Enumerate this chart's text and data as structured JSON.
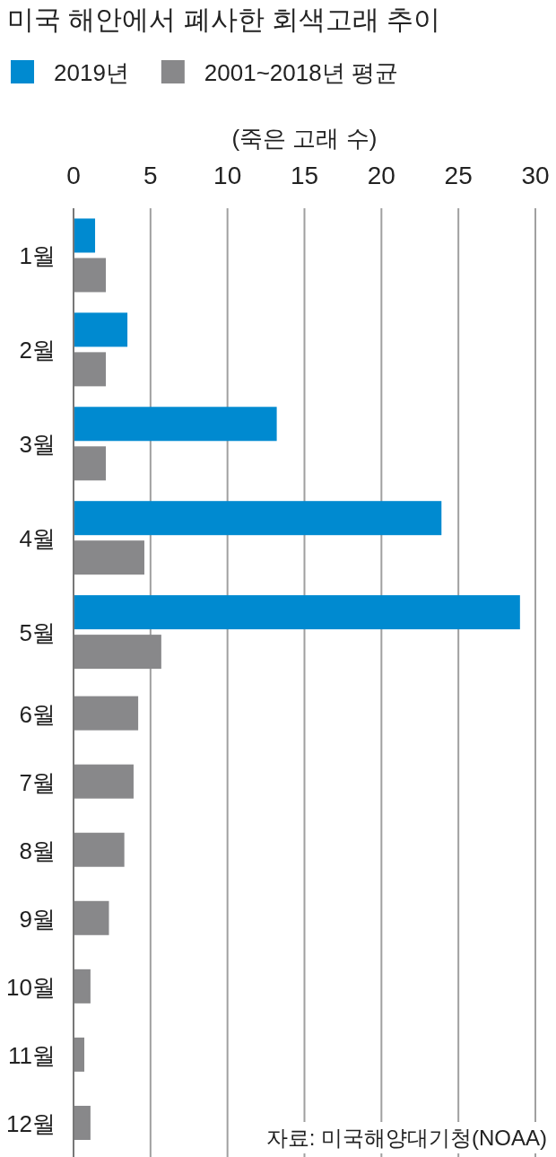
{
  "chart_data": {
    "type": "bar",
    "orientation": "horizontal",
    "title": "미국 해안에서 폐사한 회색고래 추이",
    "xlabel": "(죽은 고래 수)",
    "categories": [
      "1월",
      "2월",
      "3월",
      "4월",
      "5월",
      "6월",
      "7월",
      "8월",
      "9월",
      "10월",
      "11월",
      "12월"
    ],
    "series": [
      {
        "name": "2019년",
        "color": "#008ad0",
        "values": [
          1.4,
          3.5,
          13.2,
          23.9,
          29.0,
          null,
          null,
          null,
          null,
          null,
          null,
          null
        ]
      },
      {
        "name": "2001~2018년 평균",
        "color": "#88888a",
        "values": [
          2.1,
          2.1,
          2.1,
          4.6,
          5.7,
          4.2,
          3.9,
          3.3,
          2.3,
          1.1,
          0.7,
          1.1
        ]
      }
    ],
    "xlim": [
      0,
      30
    ],
    "xticks": [
      0,
      5,
      10,
      15,
      20,
      25,
      30
    ],
    "grid": "x",
    "legend": "top left",
    "annotations": [
      "자료: 미국해양대기청(NOAA)"
    ]
  }
}
